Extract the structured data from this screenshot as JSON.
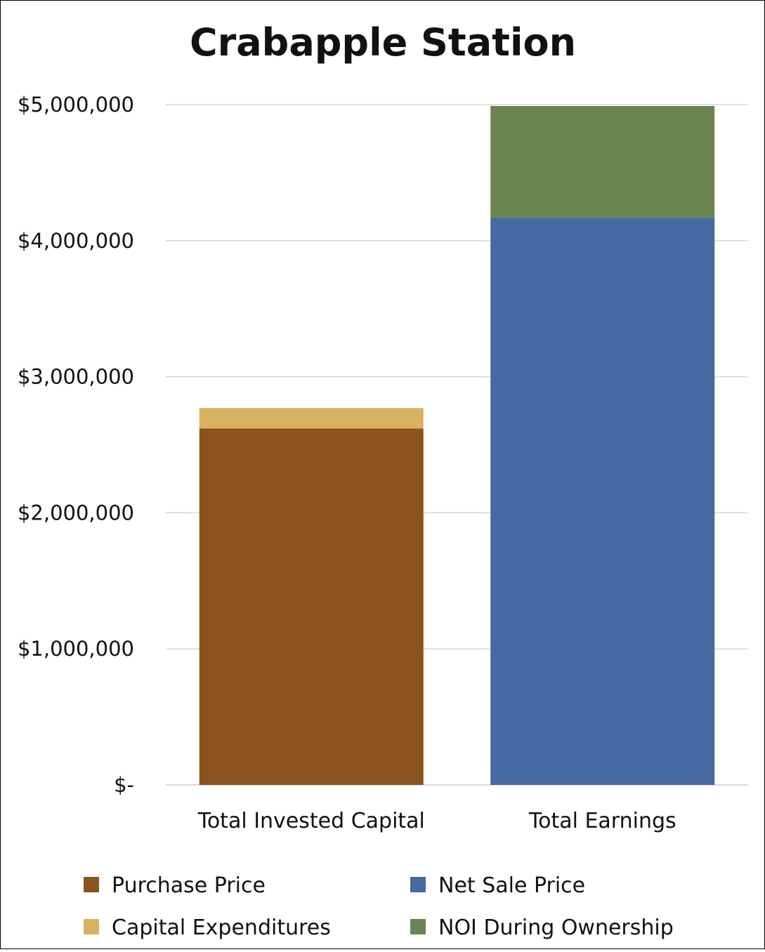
{
  "chart_data": {
    "type": "bar",
    "stacked": true,
    "title": "Crabapple Station",
    "categories": [
      "Total Invested Capital",
      "Total Earnings"
    ],
    "series": [
      {
        "name": "Purchase Price",
        "values": [
          2620000,
          0
        ],
        "color": "#8B531E"
      },
      {
        "name": "Capital Expenditures",
        "values": [
          150000,
          0
        ],
        "color": "#D8B261"
      },
      {
        "name": "Net Sale Price",
        "values": [
          0,
          4170000
        ],
        "color": "#4769A3"
      },
      {
        "name": "NOI During Ownership",
        "values": [
          0,
          820000
        ],
        "color": "#6A844F"
      }
    ],
    "ylim": [
      0,
      5000000
    ],
    "y_ticks": [
      0,
      1000000,
      2000000,
      3000000,
      4000000,
      5000000
    ],
    "y_tick_labels": [
      "$-",
      "$1,000,000",
      "$2,000,000",
      "$3,000,000",
      "$4,000,000",
      "$5,000,000"
    ],
    "grid": true,
    "legend_position": "bottom"
  }
}
